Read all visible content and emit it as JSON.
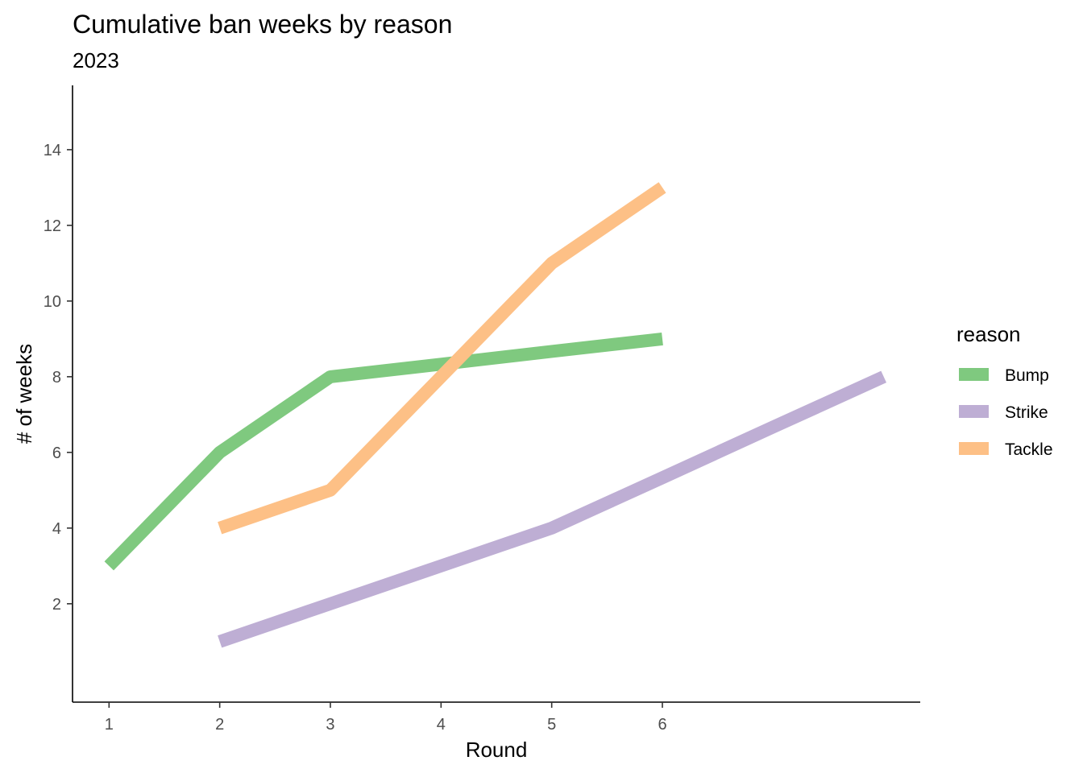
{
  "chart_data": {
    "type": "line",
    "title": "Cumulative ban weeks by reason",
    "subtitle": "2023",
    "xlabel": "Round",
    "ylabel": "# of weeks",
    "x_ticks": [
      1,
      2,
      3,
      4,
      5,
      6
    ],
    "y_ticks": [
      2,
      4,
      6,
      8,
      10,
      12,
      14
    ],
    "xlim": [
      0.67,
      8.33
    ],
    "ylim": [
      -0.6,
      15.7
    ],
    "grid": false,
    "legend": {
      "title": "reason",
      "position": "right"
    },
    "series": [
      {
        "name": "Bump",
        "color": "#7fc97f",
        "x": [
          1,
          2,
          3,
          4,
          5,
          6
        ],
        "y": [
          3,
          6,
          8,
          8.33,
          8.67,
          9
        ]
      },
      {
        "name": "Strike",
        "color": "#beaed4",
        "x": [
          2,
          3,
          4,
          5,
          6,
          7,
          8
        ],
        "y": [
          1,
          2,
          3,
          4,
          5.33,
          6.67,
          8
        ]
      },
      {
        "name": "Tackle",
        "color": "#fdc086",
        "x": [
          2,
          3,
          4,
          5,
          6
        ],
        "y": [
          4,
          5,
          8,
          11,
          13
        ]
      }
    ]
  }
}
